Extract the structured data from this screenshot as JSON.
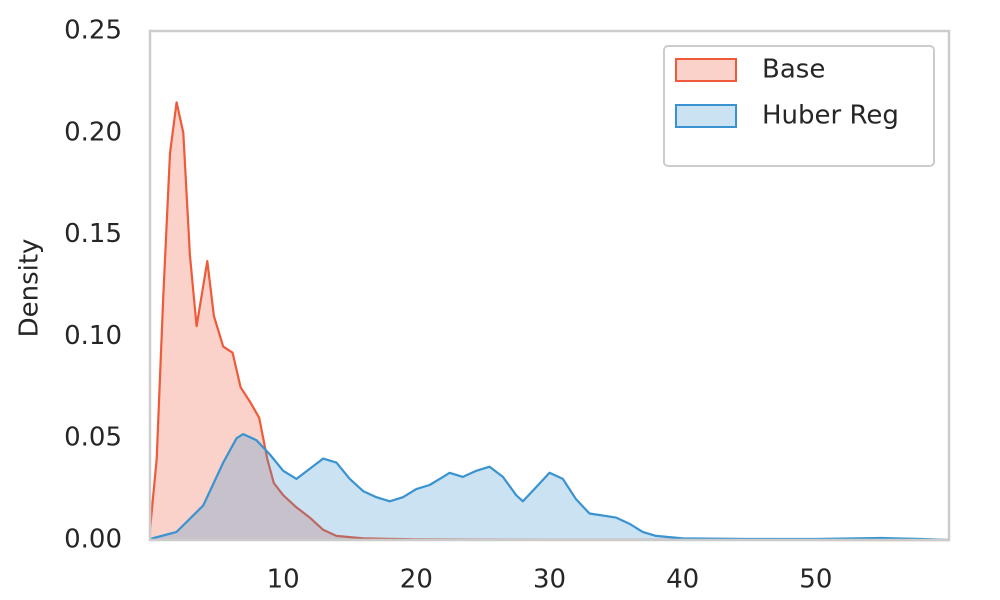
{
  "chart_data": {
    "type": "area",
    "y_label": "Density",
    "xlim": [
      0,
      60
    ],
    "ylim": [
      0,
      0.25
    ],
    "xticks": [
      10,
      20,
      30,
      40,
      50
    ],
    "yticks": [
      {
        "value": 0,
        "label": "0.00"
      },
      {
        "value": 0.05,
        "label": "0.05"
      },
      {
        "value": 0.1,
        "label": "0.10"
      },
      {
        "value": 0.15,
        "label": "0.15"
      },
      {
        "value": 0.2,
        "label": "0.20"
      },
      {
        "value": 0.25,
        "label": "0.25"
      }
    ],
    "grid": false,
    "legend": "upper right",
    "series": [
      {
        "name": "Base",
        "color": "#ee5a3a",
        "x": [
          0,
          0.5,
          1,
          1.5,
          2,
          2.5,
          3,
          3.5,
          4,
          4.3,
          4.8,
          5.5,
          6.2,
          6.8,
          7.5,
          8.2,
          8.8,
          9.3,
          10,
          11,
          12,
          13,
          14,
          16,
          20,
          30,
          60
        ],
        "values": [
          0.005,
          0.04,
          0.12,
          0.19,
          0.215,
          0.2,
          0.14,
          0.105,
          0.125,
          0.137,
          0.11,
          0.095,
          0.092,
          0.075,
          0.068,
          0.06,
          0.04,
          0.028,
          0.022,
          0.016,
          0.011,
          0.005,
          0.002,
          0.0008,
          0.0003,
          0.0001,
          0
        ]
      },
      {
        "name": "Huber Reg",
        "color": "#3a93d0",
        "x": [
          0,
          2,
          4,
          5.5,
          6.5,
          7,
          8,
          9,
          10,
          11,
          12,
          13,
          14,
          15,
          16,
          17,
          18,
          19,
          20,
          21,
          22,
          22.5,
          23.5,
          24.5,
          25.5,
          26.5,
          27.5,
          28,
          29,
          30,
          31,
          32,
          33,
          35,
          36,
          37,
          38,
          40,
          45,
          50,
          55,
          58,
          60
        ],
        "values": [
          0.0005,
          0.004,
          0.017,
          0.038,
          0.05,
          0.052,
          0.049,
          0.042,
          0.034,
          0.03,
          0.035,
          0.04,
          0.038,
          0.03,
          0.024,
          0.021,
          0.019,
          0.021,
          0.025,
          0.027,
          0.031,
          0.033,
          0.031,
          0.034,
          0.036,
          0.031,
          0.022,
          0.019,
          0.026,
          0.033,
          0.03,
          0.02,
          0.013,
          0.011,
          0.008,
          0.004,
          0.002,
          0.0008,
          0.0005,
          0.0005,
          0.001,
          0.0005,
          0
        ]
      }
    ]
  }
}
